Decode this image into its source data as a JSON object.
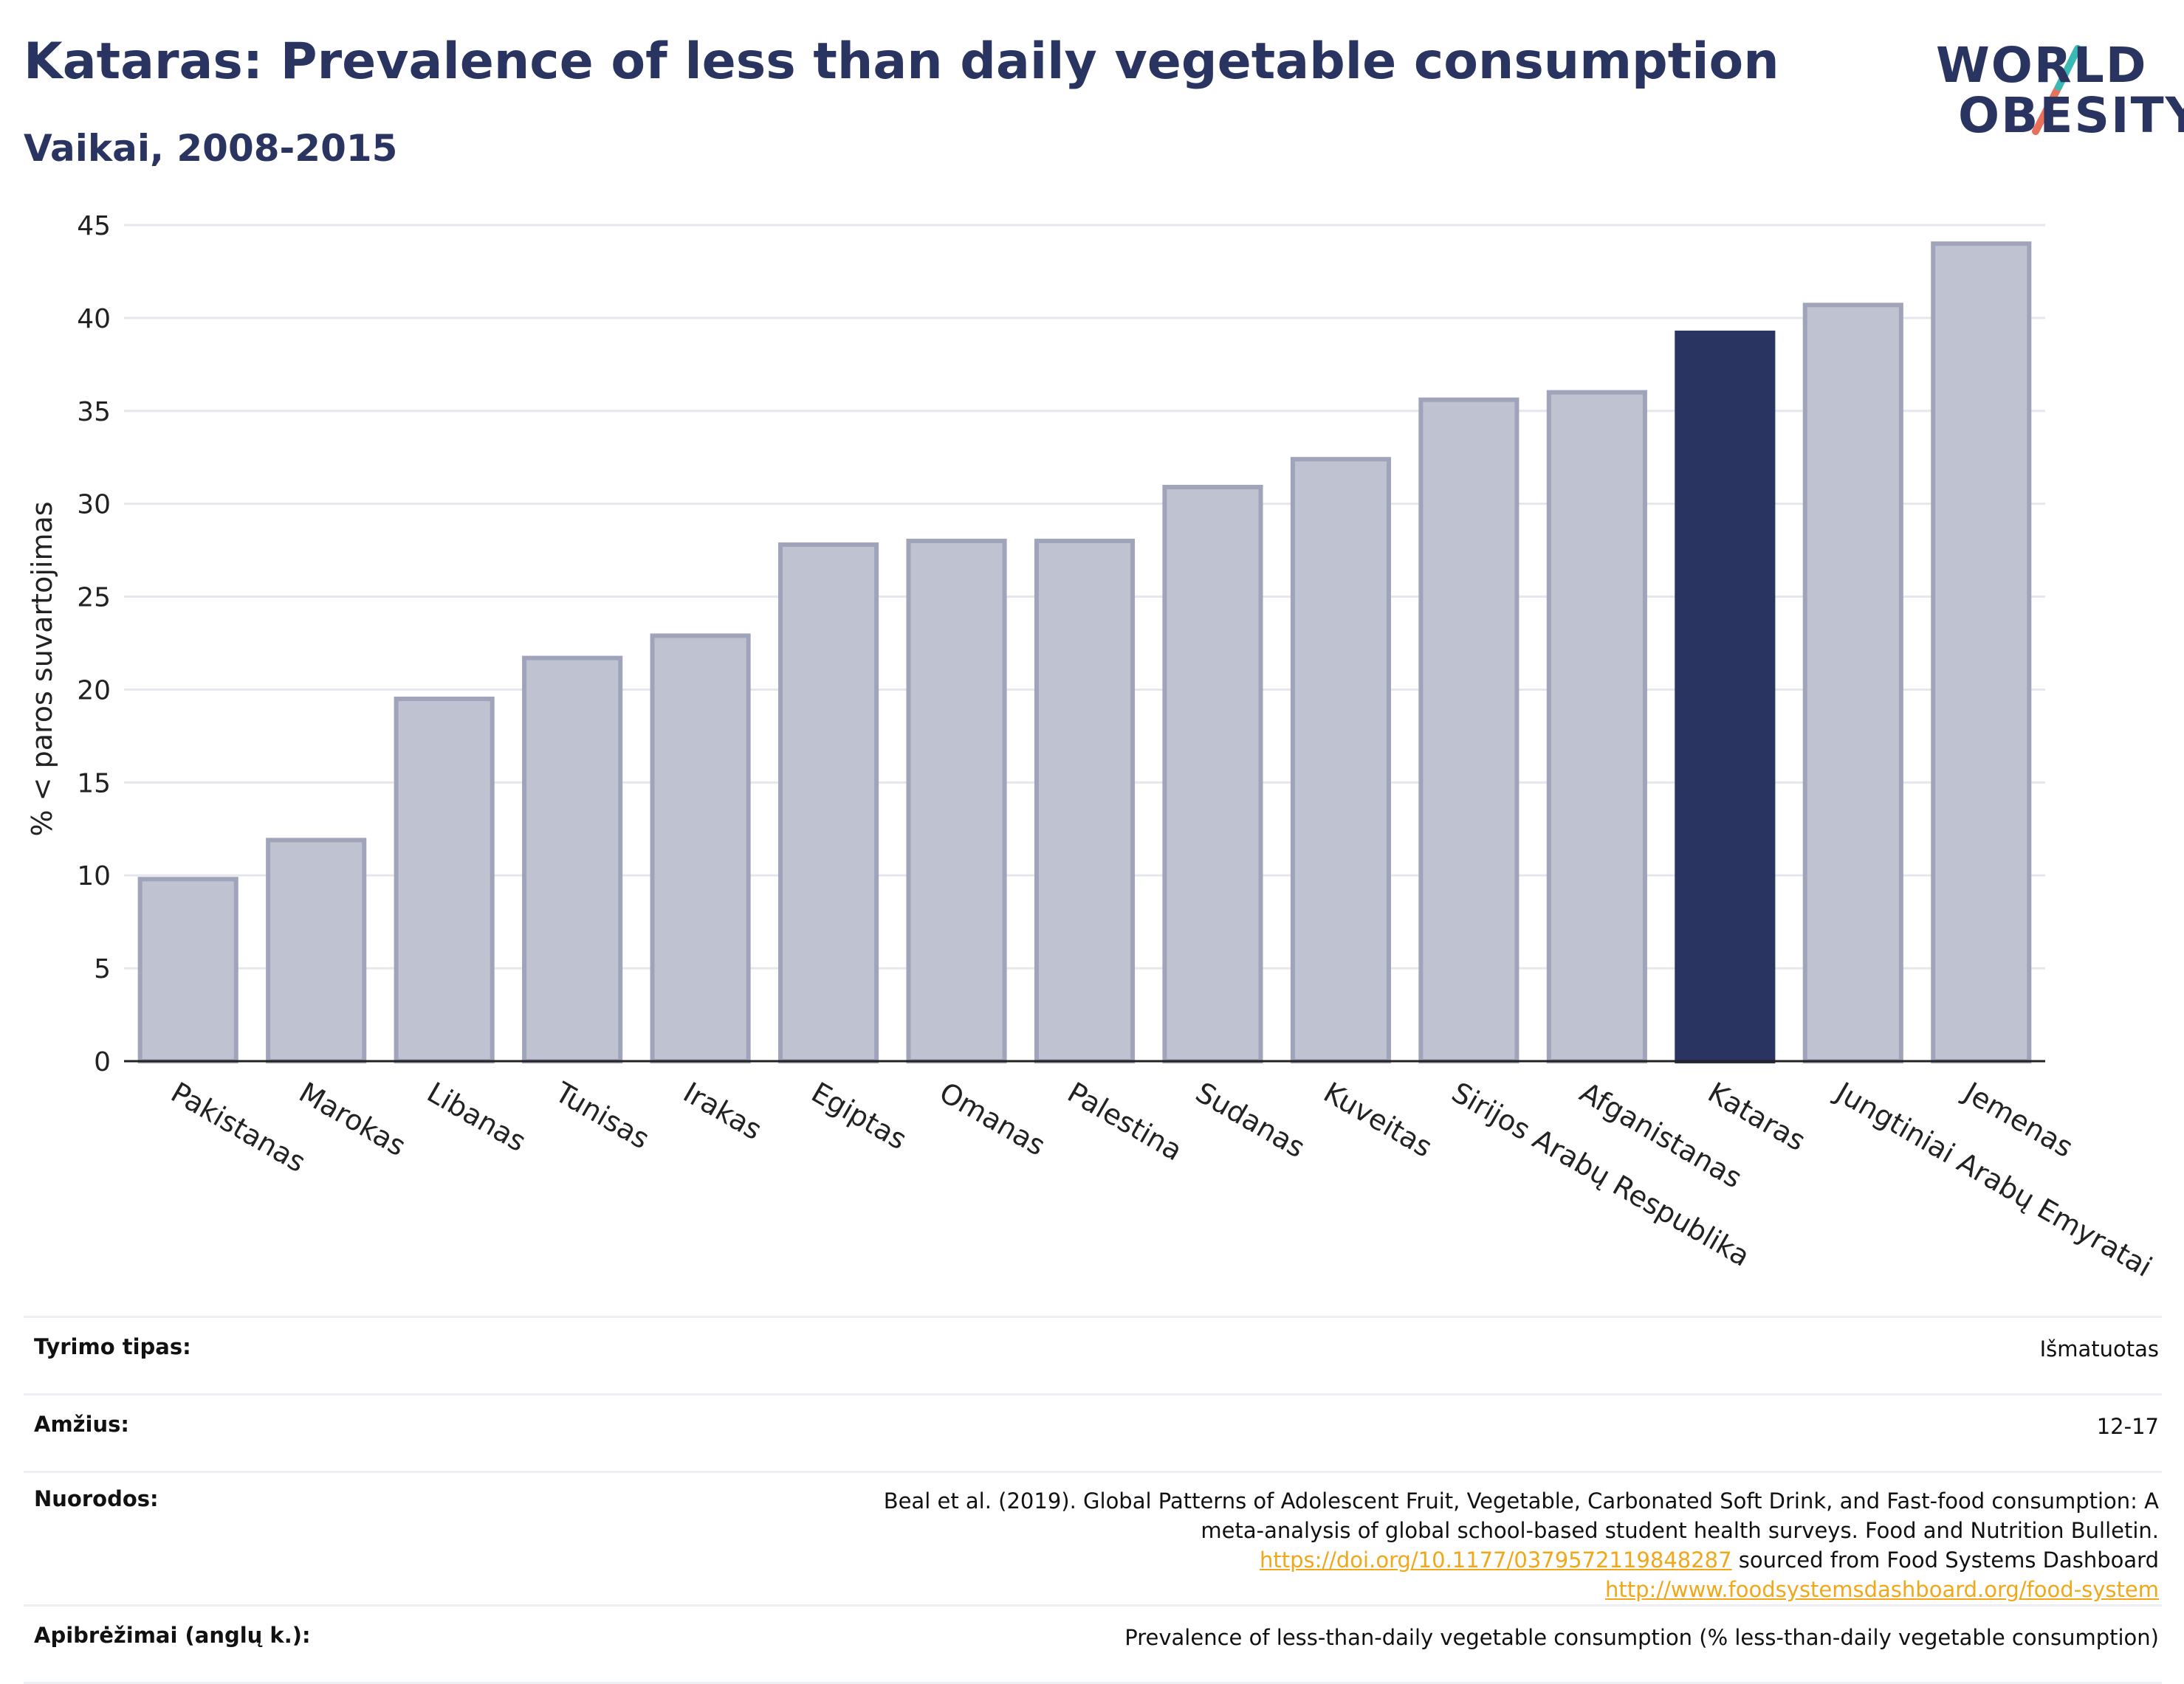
{
  "title": "Kataras: Prevalence of less than daily vegetable consumption",
  "subtitle": "Vaikai, 2008-2015",
  "logo": {
    "line1": "WORLD",
    "line2": "OBESITY"
  },
  "colors": {
    "highlight": "#2a3461",
    "bar": "#bfc3d1",
    "bar_edge": "#9fa4ba",
    "accent_teal": "#3bb9b4",
    "accent_red": "#e8715a",
    "link": "#f0a81a"
  },
  "chart_data": {
    "type": "bar",
    "categories": [
      "Pakistanas",
      "Marokas",
      "Libanas",
      "Tunisas",
      "Irakas",
      "Egiptas",
      "Omanas",
      "Palestina",
      "Sudanas",
      "Kuveitas",
      "Sirijos Arabų Respublika",
      "Afganistanas",
      "Kataras",
      "Jungtiniai Arabų Emyratai",
      "Jemenas"
    ],
    "values": [
      9.8,
      11.9,
      19.5,
      21.7,
      22.9,
      27.8,
      28.0,
      28.0,
      30.9,
      32.4,
      35.6,
      36.0,
      39.2,
      40.7,
      44.0
    ],
    "highlight": "Kataras",
    "ylabel": "% < paros suvartojimas",
    "ylim": [
      0,
      45
    ],
    "yticks": [
      0,
      5,
      10,
      15,
      20,
      25,
      30,
      35,
      40,
      45
    ],
    "grid": true
  },
  "meta": {
    "study_type_label": "Tyrimo tipas:",
    "study_type_value": "Išmatuotas",
    "age_label": "Amžius:",
    "age_value": "12-17",
    "refs_label": "Nuorodos:",
    "refs_text_1": "Beal et al. (2019). Global Patterns of Adolescent Fruit, Vegetable, Carbonated Soft Drink, and Fast-food consumption: A meta-analysis of global school-based student health surveys. Food and Nutrition Bulletin.",
    "refs_link_1": "https://doi.org/10.1177/0379572119848287",
    "refs_text_2": "sourced from Food Systems Dashboard",
    "refs_link_2": "http://www.foodsystemsdashboard.org/food-system",
    "defs_label": "Apibrėžimai (anglų k.):",
    "defs_value": "Prevalence of less-than-daily vegetable consumption (% less-than-daily vegetable consumption)"
  }
}
